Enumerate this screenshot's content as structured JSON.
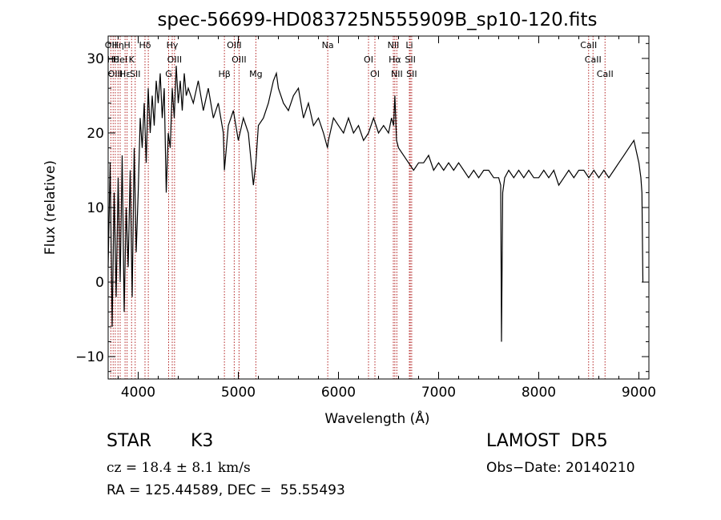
{
  "chart_data": {
    "type": "line",
    "title": "spec-56699-HD083725N555909B_sp10-120.fits",
    "xlabel": "Wavelength (Å)",
    "ylabel": "Flux (relative)",
    "xlim": [
      3700,
      9100
    ],
    "ylim": [
      -13,
      33
    ],
    "x_ticks": [
      4000,
      5000,
      6000,
      7000,
      8000,
      9000
    ],
    "y_ticks": [
      -10,
      0,
      10,
      20,
      30
    ],
    "x_tick_labels": [
      "4000",
      "5000",
      "6000",
      "7000",
      "8000",
      "9000"
    ],
    "y_tick_labels": [
      "−10",
      "0",
      "10",
      "20",
      "30"
    ],
    "grid": false,
    "line_color": "#000000",
    "marker_line_color": "#b22222",
    "series": [
      {
        "x": [
          3700,
          3720,
          3740,
          3760,
          3780,
          3800,
          3820,
          3840,
          3860,
          3880,
          3900,
          3920,
          3940,
          3960,
          3980,
          4000,
          4020,
          4040,
          4060,
          4080,
          4100,
          4120,
          4140,
          4160,
          4180,
          4200,
          4220,
          4240,
          4260,
          4280,
          4300,
          4320,
          4340,
          4360,
          4380,
          4400,
          4420,
          4440,
          4460,
          4480,
          4500,
          4550,
          4600,
          4650,
          4700,
          4750,
          4800,
          4850,
          4861,
          4900,
          4950,
          5000,
          5050,
          5100,
          5150,
          5175,
          5200,
          5250,
          5300,
          5350,
          5380,
          5400,
          5450,
          5500,
          5550,
          5600,
          5650,
          5700,
          5750,
          5800,
          5850,
          5890,
          5900,
          5950,
          6000,
          6050,
          6100,
          6150,
          6200,
          6250,
          6300,
          6350,
          6400,
          6450,
          6500,
          6530,
          6550,
          6563,
          6580,
          6600,
          6650,
          6700,
          6750,
          6800,
          6850,
          6900,
          6950,
          7000,
          7050,
          7100,
          7150,
          7200,
          7250,
          7300,
          7350,
          7400,
          7450,
          7500,
          7550,
          7600,
          7620,
          7628,
          7640,
          7660,
          7700,
          7750,
          7800,
          7850,
          7900,
          7950,
          8000,
          8050,
          8100,
          8150,
          8200,
          8250,
          8300,
          8350,
          8400,
          8450,
          8500,
          8550,
          8600,
          8650,
          8700,
          8750,
          8800,
          8850,
          8900,
          8950,
          9000,
          9020,
          9030,
          9040
        ],
        "y": [
          2,
          16,
          -6,
          12,
          -2,
          14,
          0,
          17,
          -4,
          10,
          2,
          15,
          -2,
          18,
          4,
          12,
          22,
          18,
          24,
          16,
          26,
          20,
          25,
          21,
          27,
          24,
          28,
          22,
          26,
          12,
          20,
          18,
          26,
          22,
          29,
          24,
          27,
          23,
          28,
          25,
          26,
          24,
          27,
          23,
          26,
          22,
          24,
          20,
          15,
          21,
          23,
          19,
          22,
          20,
          13,
          16,
          21,
          22,
          24,
          27,
          28,
          26,
          24,
          23,
          25,
          26,
          22,
          24,
          21,
          22,
          20,
          18,
          19,
          22,
          21,
          20,
          22,
          20,
          21,
          19,
          20,
          22,
          20,
          21,
          20,
          22,
          21,
          25,
          19,
          18,
          17,
          16,
          15,
          16,
          16,
          17,
          15,
          16,
          15,
          16,
          15,
          16,
          15,
          14,
          15,
          14,
          15,
          15,
          14,
          14,
          13,
          -8,
          12,
          14,
          15,
          14,
          15,
          14,
          15,
          14,
          14,
          15,
          14,
          15,
          13,
          14,
          15,
          14,
          15,
          15,
          14,
          15,
          14,
          15,
          14,
          15,
          16,
          17,
          18,
          19,
          16,
          14,
          12,
          0
        ]
      }
    ],
    "line_groups": [
      {
        "x": 3727,
        "labels": [
          "OII"
        ]
      },
      {
        "x": 3750,
        "labels": [
          "Hθ"
        ]
      },
      {
        "x": 3771,
        "labels": [
          "OIII"
        ]
      },
      {
        "x": 3798,
        "labels": [
          "Hη"
        ]
      },
      {
        "x": 3820,
        "labels": [
          "HeI"
        ]
      },
      {
        "x": 3869,
        "labels": [
          "Hε"
        ]
      },
      {
        "x": 3889,
        "labels": [
          "H"
        ]
      },
      {
        "x": 3934,
        "labels": [
          "K"
        ]
      },
      {
        "x": 3970,
        "labels": [
          "SII"
        ]
      },
      {
        "x": 4068,
        "labels": [
          "Hδ"
        ]
      },
      {
        "x": 4101,
        "labels": []
      },
      {
        "x": 4304,
        "labels": [
          "G"
        ]
      },
      {
        "x": 4340,
        "labels": [
          "Hγ"
        ]
      },
      {
        "x": 4363,
        "labels": [
          "OIII"
        ]
      },
      {
        "x": 4861,
        "labels": [
          "Hβ"
        ]
      },
      {
        "x": 4959,
        "labels": [
          "OIII"
        ]
      },
      {
        "x": 5007,
        "labels": [
          "OIII"
        ]
      },
      {
        "x": 5175,
        "labels": [
          "Mg"
        ]
      },
      {
        "x": 5893,
        "labels": [
          "Na"
        ]
      },
      {
        "x": 6300,
        "labels": [
          "OI"
        ]
      },
      {
        "x": 6364,
        "labels": [
          "OI"
        ]
      },
      {
        "x": 6548,
        "labels": [
          "NII"
        ]
      },
      {
        "x": 6563,
        "labels": [
          "Hα"
        ]
      },
      {
        "x": 6583,
        "labels": [
          "NII"
        ]
      },
      {
        "x": 6708,
        "labels": [
          "Li"
        ]
      },
      {
        "x": 6717,
        "labels": [
          "SII"
        ]
      },
      {
        "x": 6731,
        "labels": [
          "SII"
        ]
      },
      {
        "x": 8498,
        "labels": [
          "CaII"
        ]
      },
      {
        "x": 8542,
        "labels": [
          "CaII"
        ]
      },
      {
        "x": 8662,
        "labels": [
          "CaII"
        ]
      }
    ]
  },
  "info": {
    "class_label": "STAR",
    "subclass": "K3",
    "survey": "LAMOST  DR5",
    "redshift": "cz = 18.4 ± 8.1 km/s",
    "obs_date": "Obs−Date: 20140210",
    "radec": "RA = 125.44589, DEC =  55.55493"
  }
}
